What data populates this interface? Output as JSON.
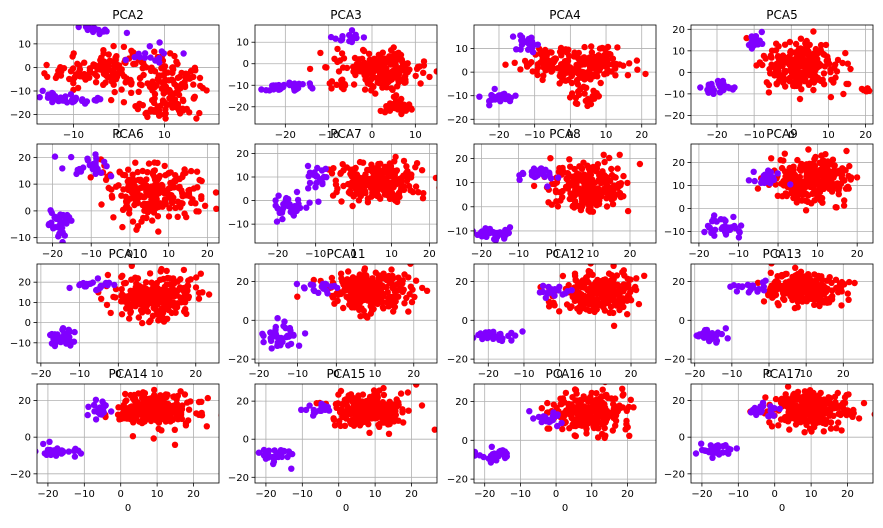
{
  "figure": {
    "background": "#ffffff"
  },
  "colors": {
    "class_a": "#8000ff",
    "class_b": "#ff0000",
    "grid": "#b0b0b0",
    "axes": "#000000"
  },
  "chart_data": [
    {
      "type": "scatter",
      "title": "PCA2",
      "xlabel": "",
      "xlim": [
        -18,
        22
      ],
      "ylim": [
        -24,
        18
      ],
      "xticks": [
        -10,
        0,
        10
      ],
      "yticks": [
        -20,
        -10,
        0,
        10
      ],
      "grid": true,
      "clusters": [
        {
          "class": "class_b",
          "cx": -2,
          "cy": -1,
          "sx": 9,
          "sy": 6,
          "n": 160
        },
        {
          "class": "class_b",
          "cx": 13,
          "cy": -8,
          "sx": 4,
          "sy": 6,
          "n": 80
        },
        {
          "class": "class_b",
          "cx": 10,
          "cy": -18,
          "sx": 5,
          "sy": 3,
          "n": 40
        },
        {
          "class": "class_a",
          "cx": -11,
          "cy": -13,
          "sx": 4,
          "sy": 1.5,
          "n": 40
        },
        {
          "class": "class_a",
          "cx": -5,
          "cy": 16,
          "sx": 3,
          "sy": 1,
          "n": 15
        },
        {
          "class": "class_a",
          "cx": 8,
          "cy": 6,
          "sx": 3,
          "sy": 3,
          "n": 15
        }
      ]
    },
    {
      "type": "scatter",
      "title": "PCA3",
      "xlabel": "",
      "xlim": [
        -27,
        15
      ],
      "ylim": [
        -28,
        18
      ],
      "xticks": [
        -20,
        -10,
        0,
        10
      ],
      "yticks": [
        -20,
        -10,
        0,
        10
      ],
      "grid": true,
      "clusters": [
        {
          "class": "class_b",
          "cx": 2,
          "cy": -3,
          "sx": 7,
          "sy": 6,
          "n": 220
        },
        {
          "class": "class_b",
          "cx": 5,
          "cy": -20,
          "sx": 3,
          "sy": 3,
          "n": 30
        },
        {
          "class": "class_a",
          "cx": -20,
          "cy": -11,
          "sx": 4,
          "sy": 1.5,
          "n": 35
        },
        {
          "class": "class_a",
          "cx": -5,
          "cy": 12,
          "sx": 3,
          "sy": 2,
          "n": 15
        }
      ]
    },
    {
      "type": "scatter",
      "title": "PCA4",
      "xlabel": "",
      "xlim": [
        -27,
        24
      ],
      "ylim": [
        -22,
        20
      ],
      "xticks": [
        -20,
        -10,
        0,
        10,
        20
      ],
      "yticks": [
        -20,
        -10,
        0,
        10
      ],
      "grid": true,
      "clusters": [
        {
          "class": "class_b",
          "cx": 2,
          "cy": 3,
          "sx": 10,
          "sy": 5,
          "n": 210
        },
        {
          "class": "class_b",
          "cx": 5,
          "cy": -10,
          "sx": 3,
          "sy": 3,
          "n": 20
        },
        {
          "class": "class_a",
          "cx": -20,
          "cy": -11,
          "sx": 3,
          "sy": 1.5,
          "n": 25
        },
        {
          "class": "class_a",
          "cx": -12,
          "cy": 12,
          "sx": 2,
          "sy": 3,
          "n": 20
        }
      ]
    },
    {
      "type": "scatter",
      "title": "PCA5",
      "xlabel": "",
      "xlim": [
        -27,
        22
      ],
      "ylim": [
        -24,
        22
      ],
      "xticks": [
        -20,
        -10,
        0,
        10,
        20
      ],
      "yticks": [
        -20,
        -10,
        0,
        10,
        20
      ],
      "grid": true,
      "clusters": [
        {
          "class": "class_b",
          "cx": 3,
          "cy": 3,
          "sx": 7,
          "sy": 8,
          "n": 230
        },
        {
          "class": "class_b",
          "cx": 20,
          "cy": -8,
          "sx": 1,
          "sy": 0.8,
          "n": 8
        },
        {
          "class": "class_a",
          "cx": -20,
          "cy": -7,
          "sx": 4,
          "sy": 2,
          "n": 30
        },
        {
          "class": "class_a",
          "cx": -10,
          "cy": 14,
          "sx": 1.5,
          "sy": 3,
          "n": 15
        }
      ]
    },
    {
      "type": "scatter",
      "title": "PCA6",
      "xlabel": "",
      "xlim": [
        -24,
        23
      ],
      "ylim": [
        -12,
        25
      ],
      "xticks": [
        -20,
        -10,
        0,
        10,
        20
      ],
      "yticks": [
        -10,
        0,
        10,
        20
      ],
      "grid": true,
      "clusters": [
        {
          "class": "class_b",
          "cx": 6,
          "cy": 7,
          "sx": 8,
          "sy": 7,
          "n": 230
        },
        {
          "class": "class_a",
          "cx": -18,
          "cy": -4,
          "sx": 2,
          "sy": 4,
          "n": 35
        },
        {
          "class": "class_a",
          "cx": -10,
          "cy": 17,
          "sx": 4,
          "sy": 3,
          "n": 25
        }
      ]
    },
    {
      "type": "scatter",
      "title": "PCA7",
      "xlabel": "",
      "xlim": [
        -26,
        22
      ],
      "ylim": [
        -18,
        24
      ],
      "xticks": [
        -20,
        -10,
        0,
        10,
        20
      ],
      "yticks": [
        -10,
        0,
        10,
        20
      ],
      "grid": true,
      "clusters": [
        {
          "class": "class_b",
          "cx": 6,
          "cy": 8,
          "sx": 7,
          "sy": 6,
          "n": 240
        },
        {
          "class": "class_a",
          "cx": -17,
          "cy": -3,
          "sx": 4,
          "sy": 4,
          "n": 35
        },
        {
          "class": "class_a",
          "cx": -9,
          "cy": 10,
          "sx": 2,
          "sy": 3,
          "n": 20
        }
      ]
    },
    {
      "type": "scatter",
      "title": "PCA8",
      "xlabel": "",
      "xlim": [
        -22,
        27
      ],
      "ylim": [
        -15,
        26
      ],
      "xticks": [
        -20,
        -10,
        0,
        10,
        20
      ],
      "yticks": [
        -10,
        0,
        10,
        20
      ],
      "grid": true,
      "clusters": [
        {
          "class": "class_b",
          "cx": 9,
          "cy": 8,
          "sx": 7,
          "sy": 7,
          "n": 240
        },
        {
          "class": "class_a",
          "cx": -17,
          "cy": -11,
          "sx": 3,
          "sy": 1.5,
          "n": 35
        },
        {
          "class": "class_a",
          "cx": -4,
          "cy": 13,
          "sx": 4,
          "sy": 2,
          "n": 25
        }
      ]
    },
    {
      "type": "scatter",
      "title": "PCA9",
      "xlabel": "",
      "xlim": [
        -22,
        24
      ],
      "ylim": [
        -15,
        28
      ],
      "xticks": [
        -20,
        -10,
        0,
        10,
        20
      ],
      "yticks": [
        -10,
        0,
        10,
        20
      ],
      "grid": true,
      "clusters": [
        {
          "class": "class_b",
          "cx": 9,
          "cy": 12,
          "sx": 7,
          "sy": 7,
          "n": 250
        },
        {
          "class": "class_a",
          "cx": -14,
          "cy": -8,
          "sx": 3,
          "sy": 3,
          "n": 35
        },
        {
          "class": "class_a",
          "cx": -3,
          "cy": 13,
          "sx": 3,
          "sy": 2,
          "n": 20
        }
      ]
    },
    {
      "type": "scatter",
      "title": "PCA10",
      "xlabel": "",
      "xlim": [
        -21,
        26
      ],
      "ylim": [
        -20,
        29
      ],
      "xticks": [
        -20,
        -10,
        0,
        10,
        20
      ],
      "yticks": [
        -10,
        0,
        10,
        20
      ],
      "grid": true,
      "clusters": [
        {
          "class": "class_b",
          "cx": 10,
          "cy": 13,
          "sx": 7,
          "sy": 7,
          "n": 250
        },
        {
          "class": "class_a",
          "cx": -14,
          "cy": -7,
          "sx": 3,
          "sy": 3,
          "n": 35
        },
        {
          "class": "class_a",
          "cx": -6,
          "cy": 18,
          "sx": 4,
          "sy": 2,
          "n": 20
        }
      ]
    },
    {
      "type": "scatter",
      "title": "PCA11",
      "xlabel": "",
      "xlim": [
        -21,
        26
      ],
      "ylim": [
        -22,
        29
      ],
      "xticks": [
        -20,
        -10,
        0,
        10,
        20
      ],
      "yticks": [
        -20,
        0,
        20
      ],
      "grid": true,
      "clusters": [
        {
          "class": "class_b",
          "cx": 9,
          "cy": 15,
          "sx": 7,
          "sy": 7,
          "n": 250
        },
        {
          "class": "class_a",
          "cx": -14,
          "cy": -8,
          "sx": 3,
          "sy": 4,
          "n": 35
        },
        {
          "class": "class_a",
          "cx": -4,
          "cy": 17,
          "sx": 3,
          "sy": 2,
          "n": 20
        }
      ]
    },
    {
      "type": "scatter",
      "title": "PCA12",
      "xlabel": "",
      "xlim": [
        -24,
        27
      ],
      "ylim": [
        -22,
        29
      ],
      "xticks": [
        -20,
        -10,
        0,
        10,
        20
      ],
      "yticks": [
        -20,
        0,
        20
      ],
      "grid": true,
      "clusters": [
        {
          "class": "class_b",
          "cx": 10,
          "cy": 14,
          "sx": 7,
          "sy": 7,
          "n": 250
        },
        {
          "class": "class_a",
          "cx": -17,
          "cy": -8,
          "sx": 4,
          "sy": 2,
          "n": 30
        },
        {
          "class": "class_a",
          "cx": -2,
          "cy": 15,
          "sx": 3,
          "sy": 2,
          "n": 20
        }
      ]
    },
    {
      "type": "scatter",
      "title": "PCA13",
      "xlabel": "",
      "xlim": [
        -21,
        28
      ],
      "ylim": [
        -22,
        29
      ],
      "xticks": [
        -20,
        -10,
        0,
        10,
        20
      ],
      "yticks": [
        -20,
        0,
        20
      ],
      "grid": true,
      "clusters": [
        {
          "class": "class_b",
          "cx": 9,
          "cy": 16,
          "sx": 7,
          "sy": 6,
          "n": 250
        },
        {
          "class": "class_a",
          "cx": -16,
          "cy": -8,
          "sx": 3,
          "sy": 2,
          "n": 30
        },
        {
          "class": "class_a",
          "cx": -5,
          "cy": 17,
          "sx": 3,
          "sy": 2,
          "n": 20
        }
      ]
    },
    {
      "type": "scatter",
      "title": "PCA14",
      "xlabel": "",
      "xlim": [
        -23,
        27
      ],
      "ylim": [
        -25,
        29
      ],
      "xticks": [
        -20,
        -10,
        0,
        10,
        20
      ],
      "yticks": [
        -20,
        0,
        20
      ],
      "grid": true,
      "clusters": [
        {
          "class": "class_b",
          "cx": 10,
          "cy": 15,
          "sx": 7,
          "sy": 6,
          "n": 250
        },
        {
          "class": "class_a",
          "cx": -18,
          "cy": -8,
          "sx": 4,
          "sy": 2,
          "n": 30
        },
        {
          "class": "class_a",
          "cx": -6,
          "cy": 16,
          "sx": 3,
          "sy": 3,
          "n": 20
        }
      ]
    },
    {
      "type": "scatter",
      "title": "PCA15",
      "xlabel": "",
      "xlim": [
        -23,
        27
      ],
      "ylim": [
        -23,
        29
      ],
      "xticks": [
        -20,
        -10,
        0,
        10,
        20
      ],
      "yticks": [
        -20,
        0,
        20
      ],
      "grid": true,
      "clusters": [
        {
          "class": "class_b",
          "cx": 8,
          "cy": 15,
          "sx": 7,
          "sy": 6,
          "n": 250
        },
        {
          "class": "class_a",
          "cx": -17,
          "cy": -8,
          "sx": 3,
          "sy": 3,
          "n": 30
        },
        {
          "class": "class_a",
          "cx": -5,
          "cy": 16,
          "sx": 3,
          "sy": 2,
          "n": 20
        }
      ]
    },
    {
      "type": "scatter",
      "title": "PCA16",
      "xlabel": "",
      "xlim": [
        -23,
        28
      ],
      "ylim": [
        -22,
        29
      ],
      "xticks": [
        -20,
        -10,
        0,
        10,
        20
      ],
      "yticks": [
        -20,
        0,
        20
      ],
      "grid": true,
      "clusters": [
        {
          "class": "class_b",
          "cx": 9,
          "cy": 14,
          "sx": 7,
          "sy": 7,
          "n": 250
        },
        {
          "class": "class_a",
          "cx": -17,
          "cy": -8,
          "sx": 3,
          "sy": 2,
          "n": 30
        },
        {
          "class": "class_a",
          "cx": -2,
          "cy": 11,
          "sx": 3,
          "sy": 3,
          "n": 20
        }
      ]
    },
    {
      "type": "scatter",
      "title": "PCA17",
      "xlabel": "",
      "xlim": [
        -23,
        27
      ],
      "ylim": [
        -25,
        29
      ],
      "xticks": [
        -20,
        -10,
        0,
        10,
        20
      ],
      "yticks": [
        -20,
        0,
        20
      ],
      "grid": true,
      "clusters": [
        {
          "class": "class_b",
          "cx": 10,
          "cy": 15,
          "sx": 7,
          "sy": 6,
          "n": 250
        },
        {
          "class": "class_a",
          "cx": -17,
          "cy": -7,
          "sx": 4,
          "sy": 2,
          "n": 30
        },
        {
          "class": "class_a",
          "cx": -3,
          "cy": 15,
          "sx": 3,
          "sy": 2,
          "n": 20
        }
      ]
    }
  ],
  "bottom_row_xlabel": "0"
}
